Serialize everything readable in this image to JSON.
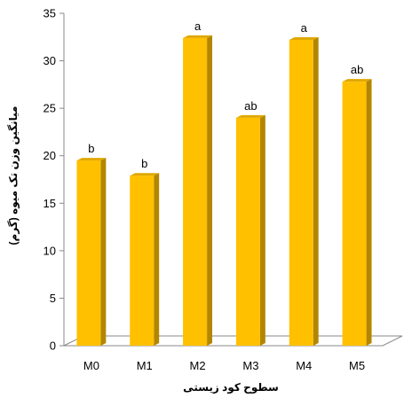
{
  "chart_data": {
    "type": "bar",
    "style": "3d-column",
    "categories": [
      "M0",
      "M1",
      "M2",
      "M3",
      "M4",
      "M5"
    ],
    "values": [
      19.5,
      17.9,
      32.4,
      24.0,
      32.2,
      27.8
    ],
    "data_labels": [
      "b",
      "b",
      "a",
      "ab",
      "a",
      "ab"
    ],
    "title": "",
    "xlabel": "سطوح کود زیستی",
    "ylabel": "میانگین وزن تک میوه (گرم)",
    "ylim": [
      0,
      35
    ],
    "yticks": [
      "0",
      "5",
      "10",
      "15",
      "20",
      "25",
      "30",
      "35"
    ],
    "grid": false,
    "legend": "none",
    "colors": {
      "bar_front": "#FFC000",
      "bar_side": "#B38600",
      "bar_top": "#E0A800",
      "floor": "#FFFFFF",
      "axis": "#888888"
    }
  }
}
